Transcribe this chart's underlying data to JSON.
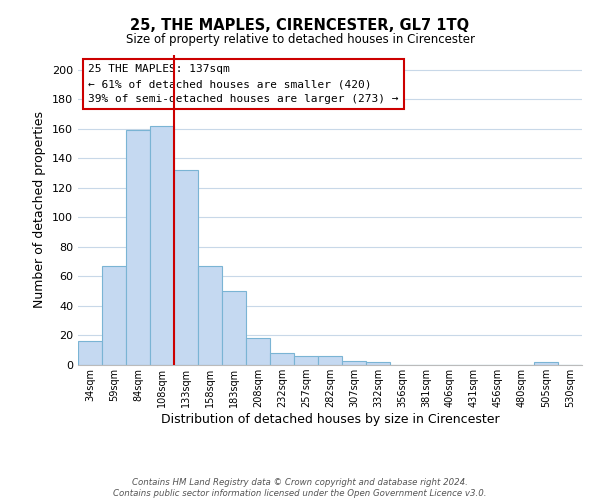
{
  "title": "25, THE MAPLES, CIRENCESTER, GL7 1TQ",
  "subtitle": "Size of property relative to detached houses in Cirencester",
  "xlabel": "Distribution of detached houses by size in Cirencester",
  "ylabel": "Number of detached properties",
  "bar_labels": [
    "34sqm",
    "59sqm",
    "84sqm",
    "108sqm",
    "133sqm",
    "158sqm",
    "183sqm",
    "208sqm",
    "232sqm",
    "257sqm",
    "282sqm",
    "307sqm",
    "332sqm",
    "356sqm",
    "381sqm",
    "406sqm",
    "431sqm",
    "456sqm",
    "480sqm",
    "505sqm",
    "530sqm"
  ],
  "bar_values": [
    16,
    67,
    159,
    162,
    132,
    67,
    50,
    18,
    8,
    6,
    6,
    3,
    2,
    0,
    0,
    0,
    0,
    0,
    0,
    2,
    0
  ],
  "bar_color": "#c5d9f1",
  "bar_edge_color": "#7ab4d4",
  "reference_line_x": 4,
  "reference_line_label": "25 THE MAPLES: 137sqm",
  "annotation_line1": "← 61% of detached houses are smaller (420)",
  "annotation_line2": "39% of semi-detached houses are larger (273) →",
  "vline_color": "#cc0000",
  "ylim": [
    0,
    210
  ],
  "yticks": [
    0,
    20,
    40,
    60,
    80,
    100,
    120,
    140,
    160,
    180,
    200
  ],
  "background_color": "#ffffff",
  "grid_color": "#c8d8e8",
  "annotation_box_color": "#ffffff",
  "annotation_box_edge": "#cc0000",
  "footer_line1": "Contains HM Land Registry data © Crown copyright and database right 2024.",
  "footer_line2": "Contains public sector information licensed under the Open Government Licence v3.0."
}
